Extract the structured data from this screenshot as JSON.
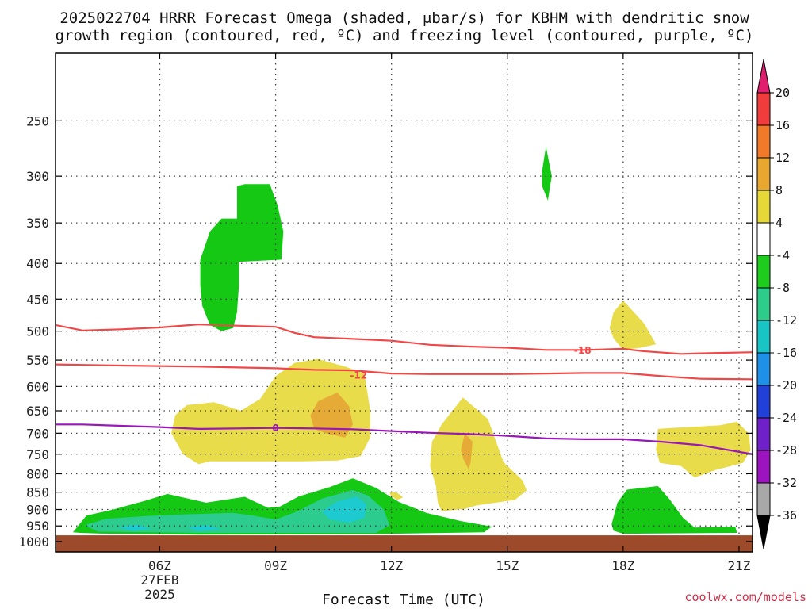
{
  "chart_data": {
    "type": "contour",
    "title_line1": "2025022704 HRRR Forecast Omega (shaded, μbar/s) for KBHM with dendritic snow",
    "title_line2": "growth region (contoured, red, ºC) and freezing level (contoured, purple, ºC)",
    "xlabel": "Forecast Time (UTC)",
    "credit": "coolwx.com/models",
    "x_range_hours": [
      3.3,
      21.35
    ],
    "y_axis": {
      "scale": "log",
      "range": [
        200,
        1035
      ],
      "ticks": [
        250,
        300,
        350,
        400,
        450,
        500,
        550,
        600,
        650,
        700,
        750,
        800,
        850,
        900,
        950,
        1000
      ],
      "tick_labels": [
        "250",
        "300",
        "350",
        "400",
        "450",
        "500",
        "550",
        "600",
        "650",
        "700",
        "750",
        "800",
        "850",
        "900",
        "950",
        "1000"
      ]
    },
    "x_ticks": [
      {
        "hour": 6,
        "label": "06Z",
        "sub1": "27FEB",
        "sub2": "2025"
      },
      {
        "hour": 9,
        "label": "09Z"
      },
      {
        "hour": 12,
        "label": "12Z"
      },
      {
        "hour": 15,
        "label": "15Z"
      },
      {
        "hour": 18,
        "label": "18Z"
      },
      {
        "hour": 21,
        "label": "21Z"
      }
    ],
    "ground_level_hPa": 980,
    "colorbar": {
      "labels": [
        "20",
        "16",
        "12",
        "8",
        "4",
        "-4",
        "-8",
        "-12",
        "-16",
        "-20",
        "-24",
        "-28",
        "-32",
        "-36"
      ],
      "colors": [
        "#f03c3c",
        "#f07a2a",
        "#e8a830",
        "#e6d836",
        "#ffffff",
        "#1ecc1e",
        "#2dcc8a",
        "#19c4c4",
        "#1e90e8",
        "#2040d8",
        "#7020c8",
        "#9c14c0",
        "#a8a8a8"
      ],
      "top_arrow_color": "#e0206e",
      "bottom_arrow_color": "#000000"
    },
    "colors": {
      "ground": "#9c4a2a",
      "dendritic_contour": "#f04848",
      "freezing_contour": "#9a18b8",
      "green": "#14c814",
      "teal": "#2ccc8e",
      "cyan": "#1ccad0",
      "yellow": "#e8dc4a",
      "orange": "#e6aa36"
    },
    "shaded_regions": [
      {
        "color": "green",
        "points": [
          [
            7.05,
            395
          ],
          [
            7.3,
            360
          ],
          [
            7.6,
            345
          ],
          [
            8.0,
            345
          ],
          [
            8.0,
            310
          ],
          [
            8.2,
            308
          ],
          [
            8.85,
            308
          ],
          [
            9.05,
            330
          ],
          [
            9.2,
            360
          ],
          [
            9.15,
            395
          ],
          [
            8.05,
            398
          ],
          [
            8.05,
            430
          ],
          [
            8.0,
            470
          ],
          [
            7.9,
            495
          ],
          [
            7.6,
            500
          ],
          [
            7.3,
            490
          ],
          [
            7.1,
            460
          ],
          [
            7.05,
            430
          ]
        ]
      },
      {
        "color": "green",
        "points": [
          [
            15.9,
            295
          ],
          [
            16.0,
            272
          ],
          [
            16.1,
            290
          ],
          [
            16.15,
            300
          ],
          [
            16.05,
            325
          ],
          [
            15.9,
            310
          ]
        ]
      },
      {
        "color": "green",
        "points": [
          [
            3.75,
            970
          ],
          [
            4.1,
            918
          ],
          [
            4.8,
            900
          ],
          [
            5.6,
            875
          ],
          [
            6.2,
            855
          ],
          [
            7.2,
            880
          ],
          [
            8.2,
            863
          ],
          [
            8.8,
            895
          ],
          [
            9.1,
            892
          ],
          [
            9.6,
            862
          ],
          [
            10.4,
            836
          ],
          [
            11.0,
            812
          ],
          [
            11.6,
            838
          ],
          [
            12.2,
            878
          ],
          [
            12.9,
            910
          ],
          [
            13.8,
            935
          ],
          [
            14.6,
            952
          ],
          [
            14.4,
            970
          ],
          [
            11.6,
            976
          ],
          [
            7.0,
            978
          ],
          [
            4.4,
            974
          ],
          [
            3.95,
            972
          ]
        ]
      },
      {
        "color": "teal",
        "points": [
          [
            4.05,
            948
          ],
          [
            4.6,
            928
          ],
          [
            5.6,
            920
          ],
          [
            6.6,
            915
          ],
          [
            7.9,
            910
          ],
          [
            8.4,
            918
          ],
          [
            9.0,
            930
          ],
          [
            9.6,
            904
          ],
          [
            10.2,
            868
          ],
          [
            11.0,
            844
          ],
          [
            11.4,
            860
          ],
          [
            11.8,
            900
          ],
          [
            11.95,
            948
          ],
          [
            11.6,
            972
          ],
          [
            7.0,
            972
          ],
          [
            4.4,
            968
          ]
        ]
      },
      {
        "color": "cyan",
        "points": [
          [
            10.2,
            906
          ],
          [
            10.6,
            876
          ],
          [
            11.1,
            862
          ],
          [
            11.35,
            885
          ],
          [
            11.3,
            925
          ],
          [
            10.9,
            940
          ],
          [
            10.4,
            930
          ]
        ]
      },
      {
        "color": "cyan",
        "points": [
          [
            4.9,
            954
          ],
          [
            5.4,
            946
          ],
          [
            5.8,
            958
          ],
          [
            5.3,
            966
          ]
        ]
      },
      {
        "color": "cyan",
        "points": [
          [
            6.7,
            954
          ],
          [
            7.2,
            948
          ],
          [
            7.6,
            960
          ],
          [
            7.0,
            966
          ]
        ]
      },
      {
        "color": "green",
        "points": [
          [
            17.7,
            945
          ],
          [
            17.85,
            880
          ],
          [
            18.1,
            843
          ],
          [
            18.9,
            833
          ],
          [
            19.2,
            870
          ],
          [
            19.55,
            925
          ],
          [
            19.85,
            955
          ],
          [
            20.9,
            952
          ],
          [
            20.95,
            972
          ],
          [
            18.0,
            975
          ],
          [
            17.75,
            965
          ]
        ]
      },
      {
        "color": "yellow",
        "points": [
          [
            6.3,
            700
          ],
          [
            6.4,
            660
          ],
          [
            6.7,
            638
          ],
          [
            7.4,
            632
          ],
          [
            8.1,
            650
          ],
          [
            8.6,
            625
          ],
          [
            9.0,
            580
          ],
          [
            9.5,
            555
          ],
          [
            10.1,
            548
          ],
          [
            10.8,
            562
          ],
          [
            11.3,
            575
          ],
          [
            11.45,
            650
          ],
          [
            11.45,
            710
          ],
          [
            11.2,
            755
          ],
          [
            10.6,
            766
          ],
          [
            9.6,
            768
          ],
          [
            8.4,
            768
          ],
          [
            7.3,
            768
          ],
          [
            7.0,
            775
          ],
          [
            6.6,
            750
          ]
        ]
      },
      {
        "color": "orange",
        "points": [
          [
            9.9,
            660
          ],
          [
            10.1,
            630
          ],
          [
            10.6,
            612
          ],
          [
            10.9,
            640
          ],
          [
            11.0,
            680
          ],
          [
            10.8,
            710
          ],
          [
            10.3,
            700
          ],
          [
            10.0,
            690
          ]
        ]
      },
      {
        "color": "yellow",
        "points": [
          [
            11.95,
            848
          ],
          [
            12.15,
            852
          ],
          [
            12.3,
            865
          ],
          [
            12.15,
            872
          ],
          [
            11.98,
            860
          ]
        ]
      },
      {
        "color": "yellow",
        "points": [
          [
            13.0,
            780
          ],
          [
            13.05,
            720
          ],
          [
            13.3,
            680
          ],
          [
            13.85,
            622
          ],
          [
            14.5,
            668
          ],
          [
            14.75,
            730
          ],
          [
            14.9,
            770
          ],
          [
            15.4,
            818
          ],
          [
            15.5,
            845
          ],
          [
            15.2,
            872
          ],
          [
            14.2,
            888
          ],
          [
            13.9,
            898
          ],
          [
            13.3,
            905
          ],
          [
            13.2,
            880
          ],
          [
            13.15,
            832
          ]
        ]
      },
      {
        "color": "orange",
        "points": [
          [
            13.8,
            740
          ],
          [
            13.9,
            700
          ],
          [
            14.1,
            720
          ],
          [
            14.05,
            770
          ],
          [
            14.0,
            788
          ],
          [
            13.85,
            760
          ]
        ]
      },
      {
        "color": "yellow",
        "points": [
          [
            17.65,
            495
          ],
          [
            17.75,
            470
          ],
          [
            18.0,
            452
          ],
          [
            18.55,
            488
          ],
          [
            18.85,
            522
          ],
          [
            18.45,
            528
          ],
          [
            18.0,
            532
          ],
          [
            17.75,
            512
          ]
        ]
      },
      {
        "color": "yellow",
        "points": [
          [
            18.9,
            690
          ],
          [
            19.25,
            688
          ],
          [
            20.5,
            682
          ],
          [
            20.95,
            674
          ],
          [
            21.25,
            700
          ],
          [
            21.3,
            740
          ],
          [
            21.1,
            772
          ],
          [
            20.4,
            790
          ],
          [
            19.85,
            810
          ],
          [
            19.5,
            780
          ],
          [
            18.95,
            772
          ],
          [
            18.85,
            740
          ]
        ]
      }
    ],
    "contours": [
      {
        "name": "dendritic -18",
        "color": "dendritic_contour",
        "label": "-18",
        "label_at": [
          16.95,
          532
        ],
        "points": [
          [
            3.3,
            490
          ],
          [
            4.0,
            499
          ],
          [
            5.0,
            497
          ],
          [
            6.0,
            494
          ],
          [
            7.0,
            489
          ],
          [
            8.0,
            491
          ],
          [
            9.0,
            493
          ],
          [
            9.5,
            503
          ],
          [
            10.0,
            510
          ],
          [
            11.0,
            513
          ],
          [
            12.0,
            516
          ],
          [
            13.0,
            523
          ],
          [
            14.0,
            526
          ],
          [
            15.0,
            528
          ],
          [
            16.0,
            532
          ],
          [
            17.0,
            532
          ],
          [
            18.0,
            530
          ],
          [
            18.5,
            534
          ],
          [
            19.5,
            539
          ],
          [
            20.0,
            538
          ],
          [
            21.35,
            536
          ]
        ]
      },
      {
        "name": "dendritic -12",
        "color": "dendritic_contour",
        "label": "-12",
        "label_at": [
          11.15,
          578
        ],
        "points": [
          [
            3.3,
            558
          ],
          [
            5.0,
            560
          ],
          [
            7.0,
            562
          ],
          [
            9.0,
            565
          ],
          [
            10.0,
            568
          ],
          [
            11.0,
            569
          ],
          [
            12.0,
            575
          ],
          [
            13.0,
            576
          ],
          [
            14.0,
            576
          ],
          [
            15.0,
            576
          ],
          [
            16.0,
            575
          ],
          [
            17.0,
            574
          ],
          [
            18.0,
            574
          ],
          [
            19.0,
            580
          ],
          [
            20.0,
            585
          ],
          [
            21.35,
            586
          ]
        ]
      },
      {
        "name": "freezing 0",
        "color": "freezing_contour",
        "label": "0",
        "label_at": [
          9.0,
          688
        ],
        "points": [
          [
            3.3,
            680
          ],
          [
            4.0,
            680
          ],
          [
            5.0,
            683
          ],
          [
            6.0,
            686
          ],
          [
            7.0,
            690
          ],
          [
            8.0,
            689
          ],
          [
            9.0,
            688
          ],
          [
            10.0,
            689
          ],
          [
            11.0,
            691
          ],
          [
            12.0,
            695
          ],
          [
            13.0,
            699
          ],
          [
            14.0,
            702
          ],
          [
            15.0,
            706
          ],
          [
            16.0,
            712
          ],
          [
            17.0,
            714
          ],
          [
            18.0,
            714
          ],
          [
            19.0,
            720
          ],
          [
            20.0,
            728
          ],
          [
            21.35,
            750
          ]
        ]
      }
    ]
  }
}
